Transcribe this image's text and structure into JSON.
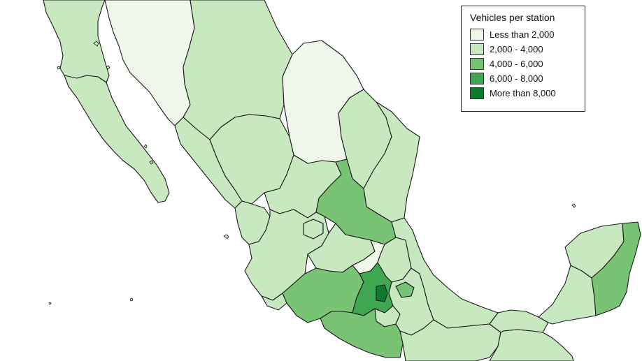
{
  "colors": {
    "background": "#ffffff",
    "border": "#1a1a1a",
    "class_1": "#eef7ea",
    "class_2": "#c8e8c0",
    "class_3": "#78c474",
    "class_4": "#3fa651",
    "class_5": "#0e7a30"
  },
  "legend": {
    "title": "Vehicles per station",
    "items": [
      {
        "label": "Less than 2,000",
        "class": 1
      },
      {
        "label": "2,000 - 4,000",
        "class": 2
      },
      {
        "label": "4,000 - 6,000",
        "class": 3
      },
      {
        "label": "6,000 - 8,000",
        "class": 4
      },
      {
        "label": "More than 8,000",
        "class": 5
      }
    ]
  },
  "regions": [
    {
      "id": "baja-california",
      "class": 2
    },
    {
      "id": "baja-california-sur",
      "class": 2
    },
    {
      "id": "sonora",
      "class": 1
    },
    {
      "id": "chihuahua",
      "class": 2
    },
    {
      "id": "coahuila",
      "class": 1
    },
    {
      "id": "nuevo-leon",
      "class": 2
    },
    {
      "id": "tamaulipas",
      "class": 2
    },
    {
      "id": "sinaloa",
      "class": 2
    },
    {
      "id": "durango",
      "class": 2
    },
    {
      "id": "zacatecas",
      "class": 2
    },
    {
      "id": "san-luis-potosi",
      "class": 3
    },
    {
      "id": "nayarit",
      "class": 2
    },
    {
      "id": "aguascalientes",
      "class": 2
    },
    {
      "id": "jalisco",
      "class": 2
    },
    {
      "id": "guanajuato",
      "class": 2
    },
    {
      "id": "queretaro",
      "class": 1
    },
    {
      "id": "hidalgo",
      "class": 2
    },
    {
      "id": "colima",
      "class": 2
    },
    {
      "id": "michoacan",
      "class": 3
    },
    {
      "id": "estado-de-mexico",
      "class": 4
    },
    {
      "id": "ciudad-de-mexico",
      "class": 5
    },
    {
      "id": "morelos",
      "class": 2
    },
    {
      "id": "tlaxcala",
      "class": 3
    },
    {
      "id": "puebla",
      "class": 2
    },
    {
      "id": "veracruz",
      "class": 2
    },
    {
      "id": "guerrero",
      "class": 3
    },
    {
      "id": "oaxaca",
      "class": 2
    },
    {
      "id": "chiapas",
      "class": 2
    },
    {
      "id": "tabasco",
      "class": 2
    },
    {
      "id": "campeche",
      "class": 2
    },
    {
      "id": "yucatan",
      "class": 2
    },
    {
      "id": "quintana-roo",
      "class": 3
    }
  ]
}
